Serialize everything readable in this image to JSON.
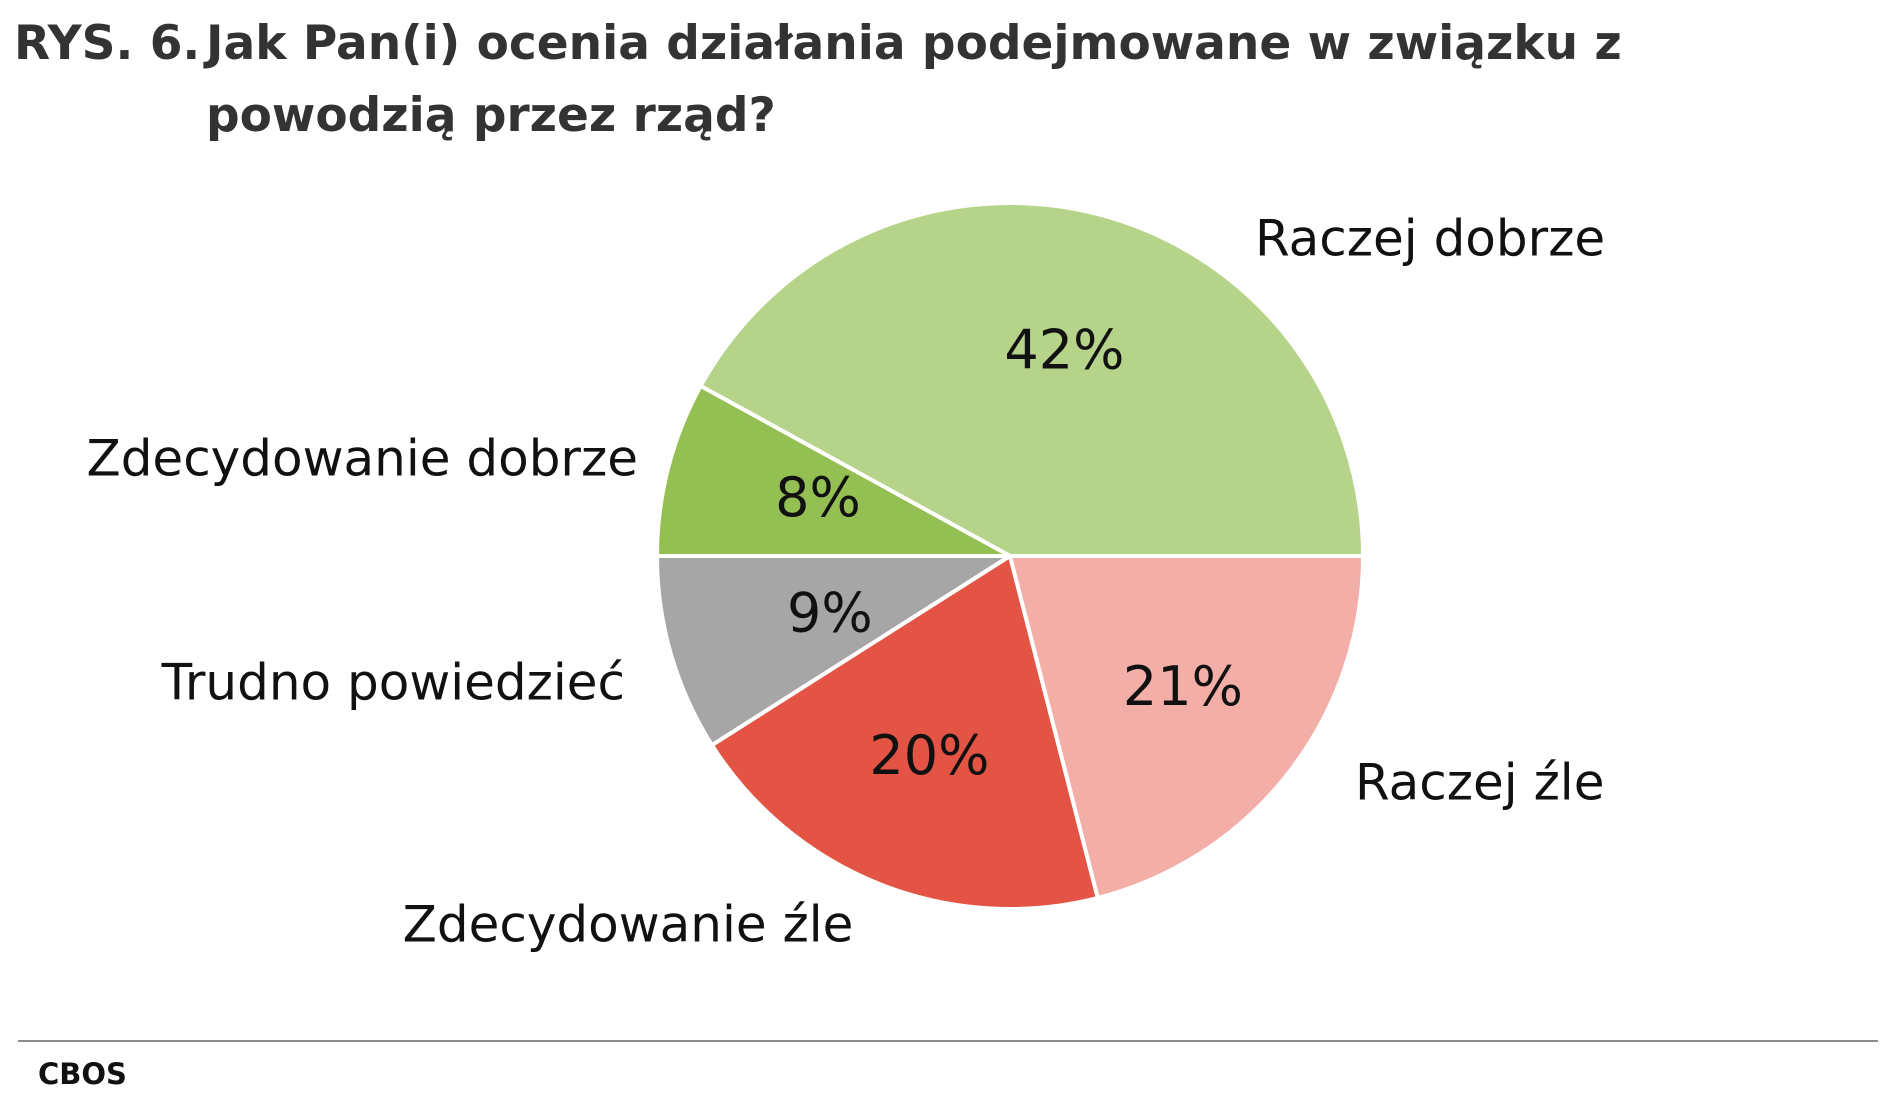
{
  "figure": {
    "number": "RYS. 6.",
    "title": "Jak Pan(i) ocenia działania podejmowane w związku z powodzią przez rząd?",
    "source": "CBOS"
  },
  "chart_data": {
    "type": "pie",
    "title": "Jak Pan(i) ocenia działania podejmowane w związku z powodzią przez rząd?",
    "start": "3 o'clock, counter-clockwise",
    "slices": [
      {
        "label": "Raczej dobrze",
        "value": 42,
        "value_label": "42%",
        "color": "#b5d489"
      },
      {
        "label": "Zdecydowanie dobrze",
        "value": 8,
        "value_label": "8%",
        "color": "#94bf52"
      },
      {
        "label": "Trudno powiedzieć",
        "value": 9,
        "value_label": "9%",
        "color": "#a6a6a6"
      },
      {
        "label": "Zdecydowanie źle",
        "value": 20,
        "value_label": "20%",
        "color": "#e45444"
      },
      {
        "label": "Raczej źle",
        "value": 21,
        "value_label": "21%",
        "color": "#f3aea8"
      }
    ],
    "legend": "none (labels outside slices)"
  }
}
